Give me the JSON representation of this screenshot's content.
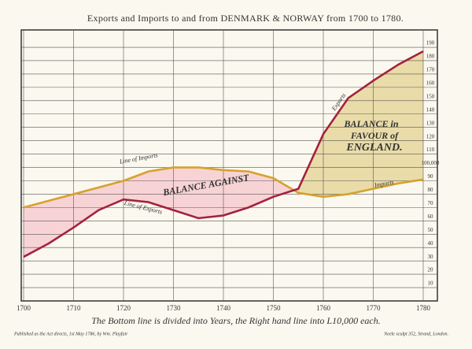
{
  "chart_data": {
    "type": "line",
    "title": "Exports and Imports to and from DENMARK & NORWAY from 1700 to 1780.",
    "x": [
      1700,
      1705,
      1710,
      1715,
      1720,
      1725,
      1730,
      1735,
      1740,
      1745,
      1750,
      1755,
      1760,
      1765,
      1770,
      1775,
      1780
    ],
    "series": [
      {
        "name": "Line of Imports",
        "color": "#d6a22e",
        "values": [
          70,
          75,
          80,
          85,
          90,
          97,
          100,
          100,
          98,
          97,
          92,
          81,
          78,
          80,
          84,
          88,
          91
        ]
      },
      {
        "name": "Line of Exports",
        "color": "#a3223e",
        "values": [
          33,
          43,
          55,
          68,
          76,
          74,
          68,
          62,
          64,
          70,
          78,
          84,
          125,
          152,
          165,
          177,
          187
        ]
      }
    ],
    "xlim": [
      1700,
      1780
    ],
    "xticks": [
      1700,
      1710,
      1720,
      1730,
      1740,
      1750,
      1760,
      1770,
      1780
    ],
    "ylim": [
      0,
      203
    ],
    "yticks": [
      10,
      20,
      30,
      40,
      50,
      60,
      70,
      80,
      90,
      {
        "value": 100,
        "label": "100,000"
      },
      110,
      120,
      130,
      140,
      150,
      160,
      170,
      180,
      190
    ],
    "grid": true,
    "annotations": [
      "Imports",
      "Exports",
      "BALANCE AGAINST",
      "BALANCE in",
      "FAVOUR of",
      "ENGLAND."
    ],
    "footer": "The Bottom line is divided into Years, the Right hand line into L10,000 each.",
    "publisher": "Published as the Act directs, 1st May 1786, by Wm. Playfair",
    "engraver": "Neele sculpt 352, Strand, London."
  }
}
